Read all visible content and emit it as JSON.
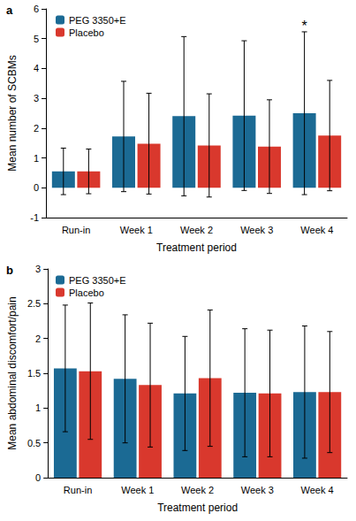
{
  "chart_data": [
    {
      "type": "bar",
      "title": "a",
      "x_label": "Treatment period",
      "y_label": "Mean number of SCBMs",
      "categories": [
        "Run-in",
        "Week 1",
        "Week 2",
        "Week 3",
        "Week 4"
      ],
      "series": [
        {
          "name": "PEG 3350+E",
          "color": "#1b6a94",
          "values": [
            0.55,
            1.72,
            2.4,
            2.42,
            2.5
          ],
          "errors": [
            0.78,
            1.85,
            2.67,
            2.51,
            2.73
          ]
        },
        {
          "name": "Placebo",
          "color": "#d9382d",
          "values": [
            0.55,
            1.48,
            1.42,
            1.38,
            1.75
          ],
          "errors": [
            0.75,
            1.69,
            1.73,
            1.57,
            1.85
          ]
        }
      ],
      "annotations": [
        {
          "text": "*",
          "category": "Week 4",
          "series": "PEG 3350+E"
        }
      ],
      "ylim": [
        -1,
        6
      ],
      "yticks": [
        -1,
        0,
        1,
        2,
        3,
        4,
        5,
        6
      ],
      "grid": false,
      "legend": "upper left"
    },
    {
      "type": "bar",
      "title": "b",
      "x_label": "Treatment period",
      "y_label": "Mean abdominal discomfort/pain",
      "categories": [
        "Run-in",
        "Week 1",
        "Week 2",
        "Week 3",
        "Week 4"
      ],
      "series": [
        {
          "name": "PEG 3350+E",
          "color": "#1b6a94",
          "values": [
            1.57,
            1.42,
            1.21,
            1.22,
            1.23
          ],
          "errors": [
            0.91,
            0.92,
            0.82,
            0.92,
            0.95
          ]
        },
        {
          "name": "Placebo",
          "color": "#d9382d",
          "values": [
            1.53,
            1.33,
            1.43,
            1.21,
            1.23
          ],
          "errors": [
            0.98,
            0.89,
            0.98,
            0.91,
            0.87
          ]
        }
      ],
      "ylim": [
        0,
        3
      ],
      "yticks": [
        0,
        0.5,
        1,
        1.5,
        2,
        2.5,
        3
      ],
      "grid": false,
      "legend": "upper left"
    }
  ]
}
